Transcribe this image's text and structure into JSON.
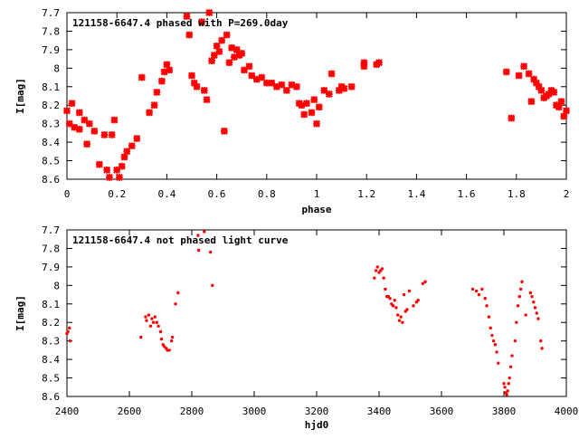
{
  "colors": {
    "marker": "#ff0000",
    "axis": "#000000",
    "background": "#ffffff"
  },
  "chart_data": [
    {
      "type": "scatter",
      "title": "121158-6647.4 phased with P=269.0day",
      "xlabel": "phase",
      "ylabel": "I[mag]",
      "xlim": [
        0,
        2
      ],
      "ylim": [
        7.7,
        8.6
      ],
      "y_inverted": true,
      "grid": false,
      "legend": "none",
      "x_ticks": [
        "0",
        "0.2",
        "0.4",
        "0.6",
        "0.8",
        "1",
        "1.2",
        "1.4",
        "1.6",
        "1.8",
        "2"
      ],
      "y_ticks": [
        "7.7",
        "7.8",
        "7.9",
        "8",
        "8.1",
        "8.2",
        "8.3",
        "8.4",
        "8.5",
        "8.6"
      ],
      "points": [
        [
          0.0,
          8.23
        ],
        [
          0.01,
          8.3
        ],
        [
          0.02,
          8.19
        ],
        [
          0.03,
          8.32
        ],
        [
          0.05,
          8.24
        ],
        [
          0.05,
          8.33
        ],
        [
          0.07,
          8.28
        ],
        [
          0.08,
          8.41
        ],
        [
          0.09,
          8.3
        ],
        [
          0.11,
          8.34
        ],
        [
          0.13,
          8.52
        ],
        [
          0.15,
          8.36
        ],
        [
          0.16,
          8.55
        ],
        [
          0.17,
          8.59
        ],
        [
          0.18,
          8.36
        ],
        [
          0.19,
          8.28
        ],
        [
          0.2,
          8.55
        ],
        [
          0.21,
          8.59
        ],
        [
          0.22,
          8.53
        ],
        [
          0.23,
          8.48
        ],
        [
          0.24,
          8.45
        ],
        [
          0.26,
          8.42
        ],
        [
          0.28,
          8.38
        ],
        [
          0.3,
          8.05
        ],
        [
          0.33,
          8.24
        ],
        [
          0.35,
          8.2
        ],
        [
          0.36,
          8.13
        ],
        [
          0.38,
          8.07
        ],
        [
          0.39,
          8.02
        ],
        [
          0.4,
          7.98
        ],
        [
          0.41,
          8.01
        ],
        [
          0.48,
          7.72
        ],
        [
          0.49,
          7.82
        ],
        [
          0.5,
          8.04
        ],
        [
          0.51,
          8.08
        ],
        [
          0.52,
          8.1
        ],
        [
          0.54,
          7.75
        ],
        [
          0.55,
          8.12
        ],
        [
          0.56,
          8.17
        ],
        [
          0.57,
          7.7
        ],
        [
          0.58,
          7.96
        ],
        [
          0.59,
          7.93
        ],
        [
          0.6,
          7.88
        ],
        [
          0.61,
          7.91
        ],
        [
          0.62,
          7.85
        ],
        [
          0.63,
          8.34
        ],
        [
          0.64,
          7.82
        ],
        [
          0.65,
          7.97
        ],
        [
          0.66,
          7.89
        ],
        [
          0.67,
          7.94
        ],
        [
          0.68,
          7.9
        ],
        [
          0.69,
          7.93
        ],
        [
          0.7,
          7.92
        ],
        [
          0.71,
          8.01
        ],
        [
          0.73,
          7.99
        ],
        [
          0.74,
          8.04
        ],
        [
          0.76,
          8.06
        ],
        [
          0.78,
          8.05
        ],
        [
          0.8,
          8.08
        ],
        [
          0.82,
          8.08
        ],
        [
          0.84,
          8.1
        ],
        [
          0.86,
          8.09
        ],
        [
          0.88,
          8.12
        ],
        [
          0.9,
          8.09
        ],
        [
          0.92,
          8.1
        ],
        [
          0.93,
          8.19
        ],
        [
          0.94,
          8.2
        ],
        [
          0.95,
          8.25
        ],
        [
          0.96,
          8.19
        ],
        [
          0.98,
          8.24
        ],
        [
          0.99,
          8.17
        ],
        [
          1.0,
          8.3
        ],
        [
          1.01,
          8.21
        ],
        [
          1.03,
          8.12
        ],
        [
          1.05,
          8.14
        ],
        [
          1.06,
          8.03
        ],
        [
          1.09,
          8.12
        ],
        [
          1.1,
          8.1
        ],
        [
          1.11,
          8.11
        ],
        [
          1.14,
          8.1
        ],
        [
          1.19,
          7.97
        ],
        [
          1.19,
          7.99
        ],
        [
          1.24,
          7.98
        ],
        [
          1.25,
          7.97
        ],
        [
          1.76,
          8.02
        ],
        [
          1.78,
          8.27
        ],
        [
          1.81,
          8.04
        ],
        [
          1.83,
          7.99
        ],
        [
          1.85,
          8.03
        ],
        [
          1.86,
          8.18
        ],
        [
          1.87,
          8.06
        ],
        [
          1.88,
          8.08
        ],
        [
          1.89,
          8.1
        ],
        [
          1.9,
          8.12
        ],
        [
          1.91,
          8.16
        ],
        [
          1.92,
          8.15
        ],
        [
          1.93,
          8.14
        ],
        [
          1.94,
          8.12
        ],
        [
          1.95,
          8.13
        ],
        [
          1.96,
          8.2
        ],
        [
          1.97,
          8.21
        ],
        [
          1.98,
          8.18
        ],
        [
          1.99,
          8.26
        ],
        [
          2.0,
          8.23
        ]
      ]
    },
    {
      "type": "scatter",
      "title": "121158-6647.4 not phased light curve",
      "xlabel": "hjd0",
      "ylabel": "I[mag]",
      "xlim": [
        2400,
        4000
      ],
      "ylim": [
        7.7,
        8.6
      ],
      "y_inverted": true,
      "grid": false,
      "legend": "none",
      "x_ticks": [
        "2400",
        "2600",
        "2800",
        "3000",
        "3200",
        "3400",
        "3600",
        "3800",
        "4000"
      ],
      "y_ticks": [
        "7.7",
        "7.8",
        "7.9",
        "8",
        "8.1",
        "8.2",
        "8.3",
        "8.4",
        "8.5",
        "8.6"
      ],
      "points": [
        [
          2400,
          8.26
        ],
        [
          2403,
          8.25
        ],
        [
          2408,
          8.23
        ],
        [
          2410,
          8.3
        ],
        [
          2637,
          8.28
        ],
        [
          2652,
          8.17
        ],
        [
          2655,
          8.19
        ],
        [
          2662,
          8.16
        ],
        [
          2668,
          8.22
        ],
        [
          2672,
          8.18
        ],
        [
          2677,
          8.2
        ],
        [
          2682,
          8.17
        ],
        [
          2688,
          8.2
        ],
        [
          2693,
          8.22
        ],
        [
          2700,
          8.25
        ],
        [
          2703,
          8.29
        ],
        [
          2708,
          8.32
        ],
        [
          2712,
          8.33
        ],
        [
          2718,
          8.34
        ],
        [
          2722,
          8.35
        ],
        [
          2728,
          8.35
        ],
        [
          2735,
          8.3
        ],
        [
          2738,
          8.28
        ],
        [
          2748,
          8.1
        ],
        [
          2756,
          8.04
        ],
        [
          2820,
          7.73
        ],
        [
          2822,
          7.81
        ],
        [
          2840,
          7.71
        ],
        [
          2860,
          7.82
        ],
        [
          2866,
          8.0
        ],
        [
          3385,
          7.96
        ],
        [
          3390,
          7.92
        ],
        [
          3395,
          7.9
        ],
        [
          3400,
          7.93
        ],
        [
          3405,
          7.92
        ],
        [
          3410,
          7.91
        ],
        [
          3415,
          7.96
        ],
        [
          3420,
          8.02
        ],
        [
          3425,
          8.06
        ],
        [
          3430,
          8.06
        ],
        [
          3435,
          8.07
        ],
        [
          3440,
          8.1
        ],
        [
          3445,
          8.11
        ],
        [
          3450,
          8.08
        ],
        [
          3455,
          8.12
        ],
        [
          3460,
          8.16
        ],
        [
          3465,
          8.19
        ],
        [
          3470,
          8.17
        ],
        [
          3475,
          8.2
        ],
        [
          3480,
          8.05
        ],
        [
          3485,
          8.14
        ],
        [
          3490,
          8.13
        ],
        [
          3497,
          8.03
        ],
        [
          3510,
          8.11
        ],
        [
          3520,
          8.09
        ],
        [
          3525,
          8.08
        ],
        [
          3540,
          7.99
        ],
        [
          3548,
          7.98
        ],
        [
          3700,
          8.02
        ],
        [
          3712,
          8.03
        ],
        [
          3720,
          8.05
        ],
        [
          3730,
          8.02
        ],
        [
          3740,
          8.07
        ],
        [
          3745,
          8.11
        ],
        [
          3752,
          8.17
        ],
        [
          3757,
          8.23
        ],
        [
          3762,
          8.27
        ],
        [
          3767,
          8.3
        ],
        [
          3772,
          8.32
        ],
        [
          3777,
          8.36
        ],
        [
          3782,
          8.42
        ],
        [
          3800,
          8.53
        ],
        [
          3803,
          8.55
        ],
        [
          3806,
          8.58
        ],
        [
          3809,
          8.59
        ],
        [
          3812,
          8.57
        ],
        [
          3815,
          8.53
        ],
        [
          3818,
          8.5
        ],
        [
          3822,
          8.44
        ],
        [
          3826,
          8.38
        ],
        [
          3836,
          8.3
        ],
        [
          3840,
          8.2
        ],
        [
          3845,
          8.11
        ],
        [
          3850,
          8.06
        ],
        [
          3854,
          8.02
        ],
        [
          3858,
          7.98
        ],
        [
          3870,
          8.16
        ],
        [
          3885,
          8.04
        ],
        [
          3890,
          8.06
        ],
        [
          3895,
          8.09
        ],
        [
          3900,
          8.12
        ],
        [
          3905,
          8.15
        ],
        [
          3910,
          8.18
        ],
        [
          3918,
          8.3
        ],
        [
          3922,
          8.34
        ]
      ]
    }
  ]
}
